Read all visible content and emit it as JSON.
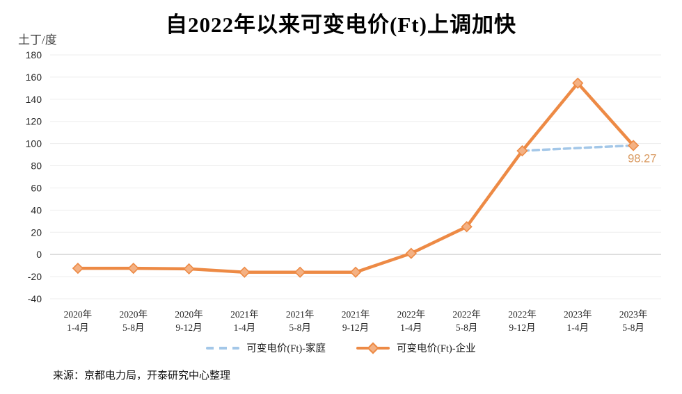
{
  "header": {
    "title": "自2022年以来可变电价(Ft)上调加快",
    "unit_label": "土丁/度"
  },
  "footer": {
    "source": "来源：京都电力局，开泰研究中心整理"
  },
  "legend": {
    "items": [
      {
        "label": "可变电价(Ft)-家庭",
        "style": "dashed",
        "color": "#A3C7E8"
      },
      {
        "label": "可变电价(Ft)-企业",
        "style": "solid",
        "color": "#ED8A45",
        "marker": "diamond",
        "marker_fill": "#F4B183"
      }
    ]
  },
  "annotation": {
    "text": "98.27",
    "color": "#D9995F"
  },
  "colors": {
    "grid": "#EDEDED",
    "zero_line": "#C3C3C3",
    "tick_text": "#262626",
    "category_text": "#262626"
  },
  "chart_data": {
    "type": "line",
    "title": "自2022年以来可变电价(Ft)上调加快",
    "ylabel": "土丁/度",
    "categories": [
      [
        "2020年",
        "1-4月"
      ],
      [
        "2020年",
        "5-8月"
      ],
      [
        "2020年",
        "9-12月"
      ],
      [
        "2021年",
        "1-4月"
      ],
      [
        "2021年",
        "5-8月"
      ],
      [
        "2021年",
        "9-12月"
      ],
      [
        "2022年",
        "1-4月"
      ],
      [
        "2022年",
        "5-8月"
      ],
      [
        "2022年",
        "9-12月"
      ],
      [
        "2023年",
        "1-4月"
      ],
      [
        "2023年",
        "5-8月"
      ]
    ],
    "series": [
      {
        "name": "可变电价(Ft)-家庭",
        "line_style": "dashed",
        "color": "#A3C7E8",
        "marker": "none",
        "values": [
          null,
          null,
          null,
          null,
          null,
          null,
          null,
          null,
          93.5,
          96,
          98.27
        ]
      },
      {
        "name": "可变电价(Ft)-企业",
        "line_style": "solid",
        "color": "#ED8A45",
        "marker": "diamond",
        "marker_fill": "#F4B183",
        "values": [
          -12.5,
          -12.5,
          -13,
          -16,
          -16,
          -16,
          1,
          25,
          93.5,
          154.5,
          98.27
        ]
      }
    ],
    "ylim": [
      -40,
      180
    ],
    "ytick_step": 20,
    "grid": true,
    "legend_position": "bottom",
    "annotated_point": {
      "series": "可变电价(Ft)-企业",
      "category_index": 10,
      "label": "98.27"
    }
  }
}
